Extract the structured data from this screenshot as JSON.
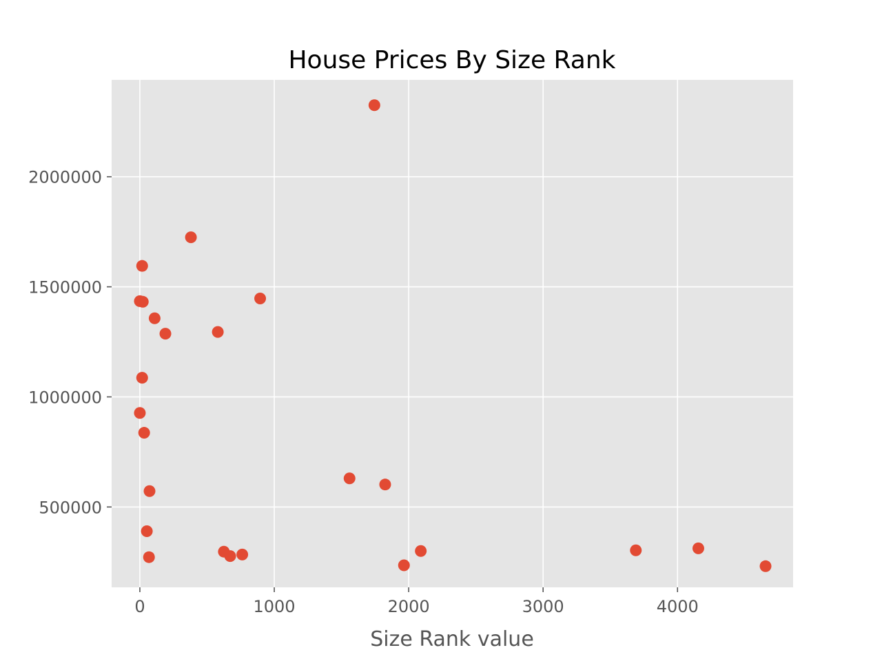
{
  "chart_data": {
    "type": "scatter",
    "title": "House Prices By Size Rank",
    "xlabel": "Size Rank value",
    "ylabel": "",
    "xlim": [
      -210,
      4860
    ],
    "ylim": [
      135000,
      2440000
    ],
    "xticks": [
      0,
      1000,
      2000,
      3000,
      4000
    ],
    "xtick_labels": [
      "0",
      "1000",
      "2000",
      "3000",
      "4000"
    ],
    "yticks": [
      500000,
      1000000,
      1500000,
      2000000
    ],
    "ytick_labels": [
      "500000",
      "1000000",
      "1500000",
      "2000000"
    ],
    "grid": true,
    "legend": "none",
    "colors": {
      "marker": "#E24A33",
      "plot_background": "#E5E5E5",
      "grid": "#FFFFFF",
      "tick_text": "#555555",
      "title_text": "#000000"
    },
    "series": [
      {
        "x": [
          1745,
          380,
          17,
          0,
          22,
          110,
          190,
          580,
          895,
          17,
          0,
          32,
          72,
          52,
          68,
          625,
          672,
          762,
          1560,
          1825,
          1965,
          2090,
          3690,
          4155,
          4655
        ],
        "y": [
          2325000,
          1725000,
          1595000,
          1435000,
          1432000,
          1357000,
          1287000,
          1295000,
          1447000,
          1087000,
          927000,
          837000,
          572000,
          390000,
          272000,
          297000,
          277000,
          284000,
          630000,
          602000,
          235000,
          300000,
          303000,
          312000,
          231000
        ]
      }
    ]
  }
}
